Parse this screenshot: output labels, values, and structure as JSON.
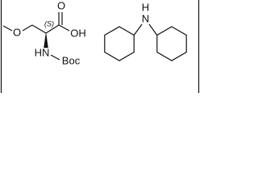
{
  "labels": {
    "methoxy_o": "O",
    "stereo": "(S)",
    "carbonyl_o": "O",
    "hydroxyl": "OH",
    "amine": "HN",
    "protecting_group": "Boc",
    "amine_h": "H",
    "amine_n": "N"
  }
}
